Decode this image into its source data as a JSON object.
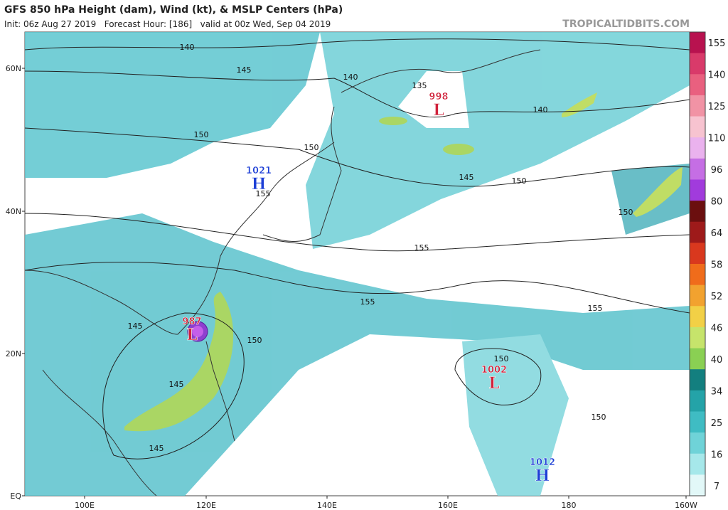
{
  "header": {
    "title": "GFS 850 hPa Height (dam), Wind (kt), & MSLP Centers (hPa)",
    "subtitle": "Init: 06z Aug 27 2019   Forecast Hour: [186]   valid at 00z Wed, Sep 04 2019",
    "brand": "TROPICALTIDBITS.COM"
  },
  "axes": {
    "lat": [
      "60N",
      "40N",
      "20N",
      "EQ"
    ],
    "lon": [
      "100E",
      "120E",
      "140E",
      "160E",
      "180",
      "160W"
    ]
  },
  "colorbar": {
    "labels": [
      "155",
      "140",
      "125",
      "110",
      "96",
      "80",
      "64",
      "58",
      "52",
      "46",
      "40",
      "34",
      "25",
      "16",
      "7"
    ]
  },
  "centers": [
    {
      "value": "998",
      "type": "L"
    },
    {
      "value": "1021",
      "type": "H"
    },
    {
      "value": "987",
      "type": "L"
    },
    {
      "value": "1002",
      "type": "L"
    },
    {
      "value": "1012",
      "type": "H"
    }
  ],
  "contour_labels": [
    "140",
    "140",
    "140",
    "145",
    "145",
    "145",
    "145",
    "135",
    "150",
    "150",
    "150",
    "150",
    "150",
    "150",
    "150",
    "155",
    "155",
    "155",
    "155",
    "145"
  ]
}
